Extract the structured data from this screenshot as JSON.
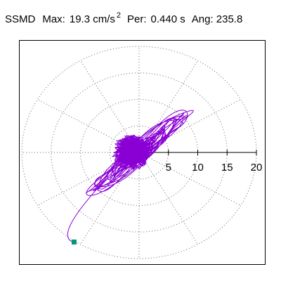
{
  "header": {
    "title": "SSMD",
    "max_label": "Max:",
    "max_value": "19.3 cm/s",
    "max_exponent": "2",
    "per_label": "Per:",
    "per_value": "0.440 s",
    "ang_label": "Ang: 235.8"
  },
  "colors": {
    "trace": "#8a00d4",
    "marker": "#009977",
    "grid": "#666666",
    "axis": "#000000"
  },
  "chart_data": {
    "type": "polar-trajectory",
    "radial_ticks": [
      "5",
      "10",
      "15",
      "20"
    ],
    "radial_max": 20,
    "grid": true,
    "spokes_deg": [
      30,
      60,
      90,
      120,
      150,
      180,
      210,
      240,
      270,
      300,
      330,
      360
    ]
  }
}
